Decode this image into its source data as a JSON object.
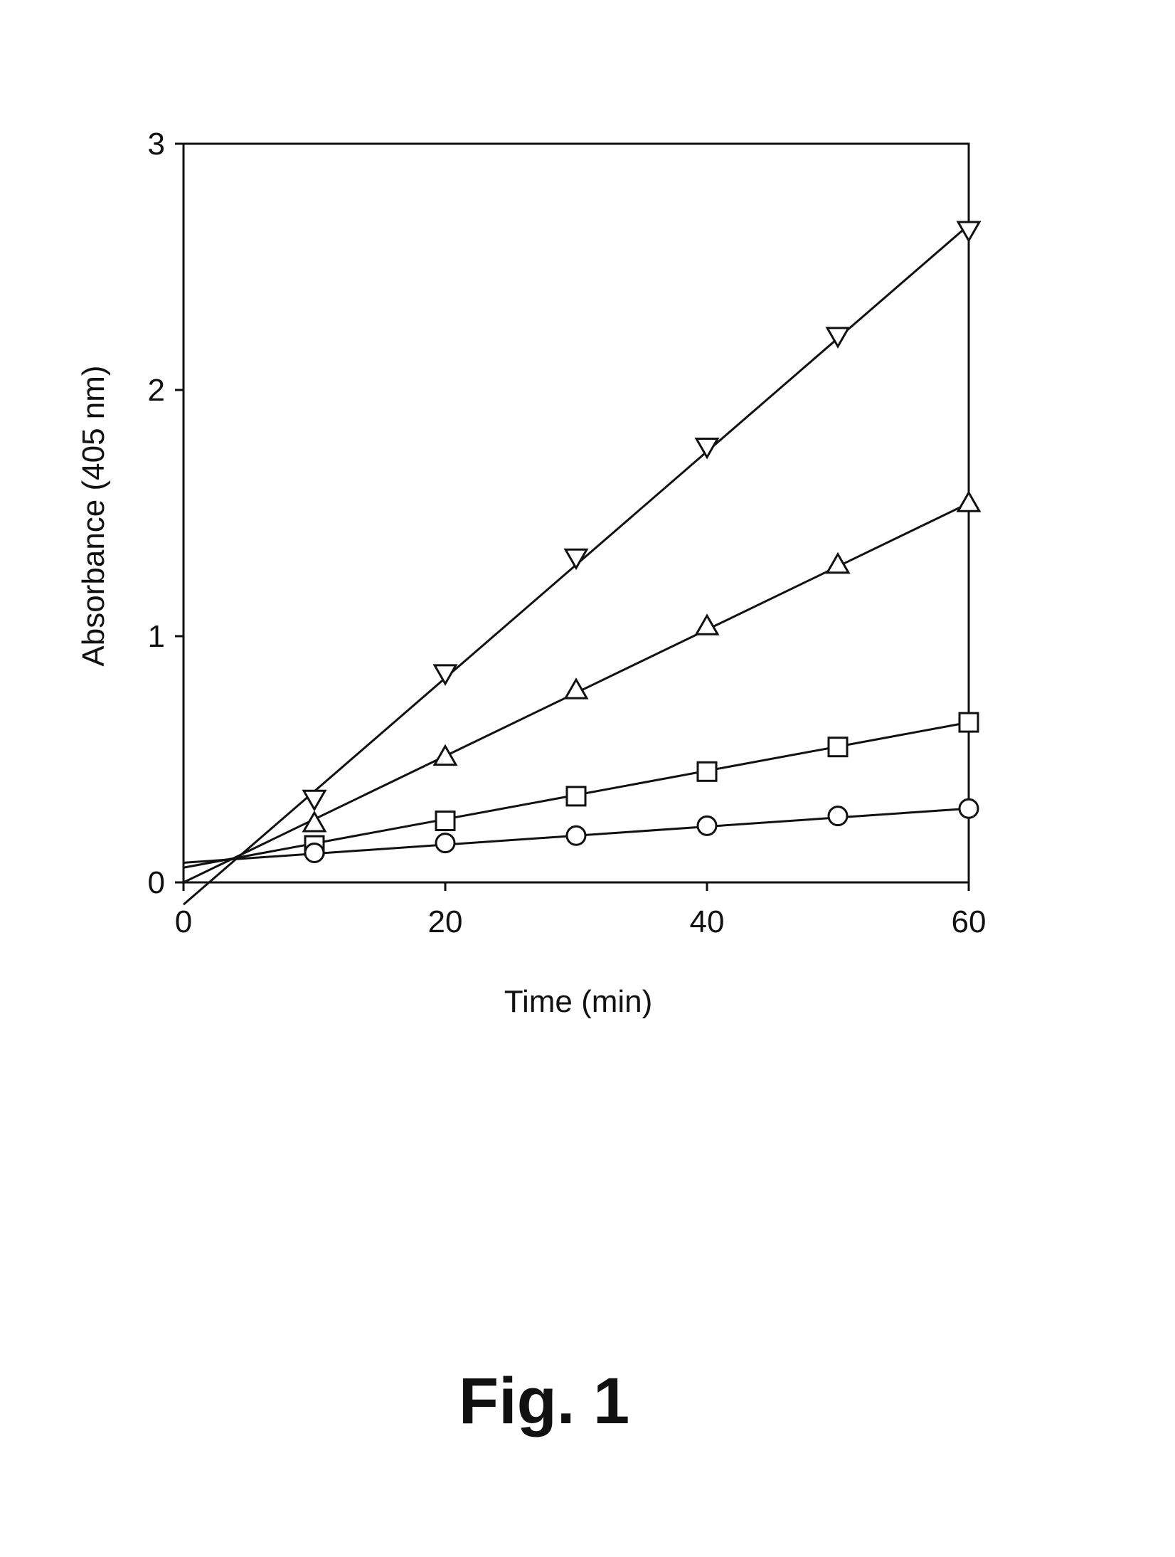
{
  "chart_data": {
    "type": "scatter",
    "title": "",
    "xlabel": "Time (min)",
    "ylabel": "Absorbance (405 nm)",
    "xlim": [
      0,
      60
    ],
    "ylim": [
      0,
      3
    ],
    "xticks": [
      0,
      20,
      40,
      60
    ],
    "yticks": [
      0,
      1,
      2,
      3
    ],
    "grid": false,
    "legend": "none",
    "markers_open": true,
    "series": [
      {
        "marker": "triangle-down",
        "x": [
          10,
          20,
          30,
          40,
          50,
          60
        ],
        "y": [
          0.34,
          0.85,
          1.32,
          1.77,
          2.22,
          2.65
        ],
        "fit": {
          "x": [
            0,
            60
          ],
          "y": [
            -0.09,
            2.67
          ]
        }
      },
      {
        "marker": "triangle-up",
        "x": [
          10,
          20,
          30,
          40,
          50,
          60
        ],
        "y": [
          0.24,
          0.51,
          0.78,
          1.04,
          1.29,
          1.54
        ],
        "fit": {
          "x": [
            0,
            60
          ],
          "y": [
            0.0,
            1.54
          ]
        }
      },
      {
        "marker": "square",
        "x": [
          10,
          20,
          30,
          40,
          50,
          60
        ],
        "y": [
          0.15,
          0.25,
          0.35,
          0.45,
          0.55,
          0.65
        ],
        "fit": {
          "x": [
            0,
            60
          ],
          "y": [
            0.06,
            0.65
          ]
        }
      },
      {
        "marker": "circle",
        "x": [
          10,
          20,
          30,
          40,
          50,
          60
        ],
        "y": [
          0.12,
          0.16,
          0.19,
          0.23,
          0.27,
          0.3
        ],
        "fit": {
          "x": [
            0,
            60
          ],
          "y": [
            0.08,
            0.3
          ]
        }
      }
    ]
  },
  "figure_caption": "Fig. 1",
  "colors": {
    "ink": "#111111",
    "background": "#ffffff"
  }
}
